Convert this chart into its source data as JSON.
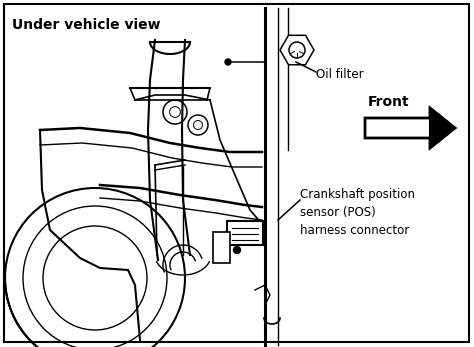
{
  "background_color": "#ffffff",
  "border_color": "#000000",
  "label_under_vehicle": "Under vehicle view",
  "label_oil_filter": "Oil filter",
  "label_front": "Front",
  "label_crankshaft": "Crankshaft position\nsensor (POS)\nharness connector",
  "fig_width": 4.74,
  "fig_height": 3.47,
  "dpi": 100
}
